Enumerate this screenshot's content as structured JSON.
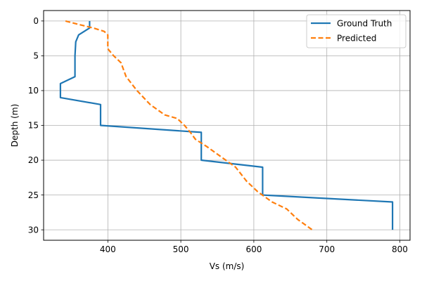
{
  "chart_data": {
    "type": "line",
    "title": "",
    "xlabel": "Vs (m/s)",
    "ylabel": "Depth (m)",
    "xlim": [
      312,
      814
    ],
    "ylim": [
      31.5,
      -1.5
    ],
    "y_inverted": true,
    "grid": true,
    "legend": "top-right",
    "xticks": [
      400,
      500,
      600,
      700,
      800
    ],
    "yticks": [
      0,
      5,
      10,
      15,
      20,
      25,
      30
    ],
    "series": [
      {
        "name": "Ground Truth",
        "color": "#1f77b4",
        "style": "solid",
        "x": [
          375,
          375,
          360,
          356,
          355,
          355,
          355,
          335,
          335,
          390,
          390,
          528,
          528,
          528,
          612,
          612,
          790,
          790
        ],
        "y": [
          0,
          1,
          2,
          3,
          5,
          8,
          8,
          9,
          11,
          12,
          15,
          16,
          16,
          20,
          21,
          25,
          26,
          30
        ]
      },
      {
        "name": "Predicted",
        "color": "#ff7f0e",
        "style": "dashed",
        "x": [
          342,
          360,
          380,
          395,
          400,
          400,
          408,
          418,
          425,
          440,
          458,
          478,
          495,
          505,
          513,
          520,
          535,
          555,
          575,
          590,
          605,
          625,
          645,
          660,
          680
        ],
        "y": [
          0,
          0.5,
          1,
          1.5,
          2,
          4,
          5,
          6,
          8,
          10,
          12,
          13.5,
          14,
          15,
          16,
          17,
          18,
          19.5,
          21,
          23,
          24.5,
          26,
          27,
          28.5,
          30
        ]
      }
    ]
  }
}
